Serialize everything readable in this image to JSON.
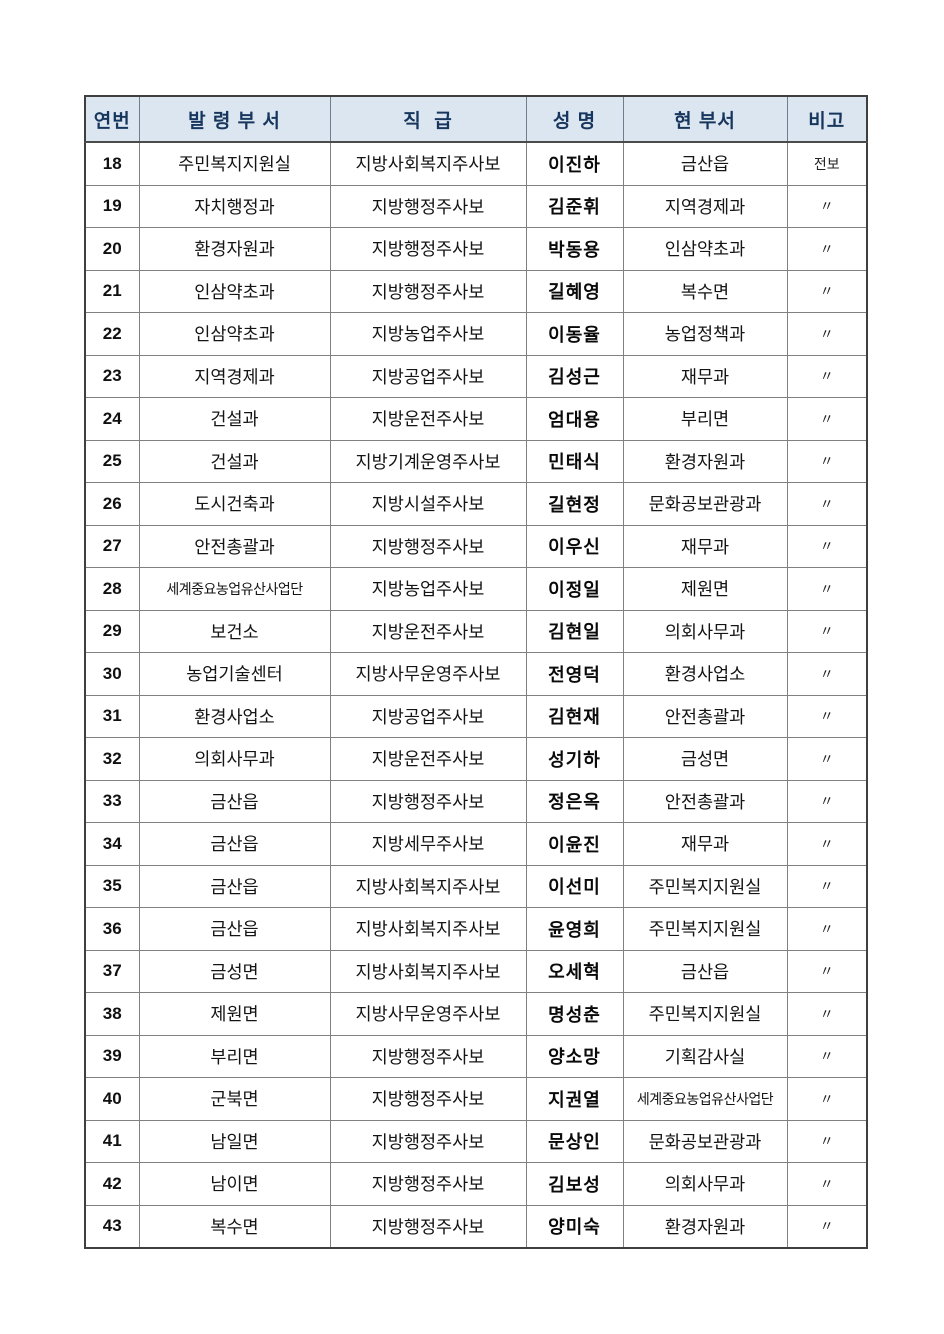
{
  "page": {
    "background": "#ffffff"
  },
  "document": {
    "kind": "personnel-transfer-table",
    "colors": {
      "header_bg": "#dce6f1",
      "header_text": "#17365d",
      "grid_line": "#808080",
      "outer_border": "#3f3f3f",
      "body_text": "#141414"
    },
    "columns": [
      {
        "key": "no",
        "label": "연번"
      },
      {
        "key": "from_dept",
        "label": "발 령 부 서"
      },
      {
        "key": "rank",
        "label": "직  급"
      },
      {
        "key": "name",
        "label": "성 명"
      },
      {
        "key": "current_dept",
        "label": "현 부서"
      },
      {
        "key": "note",
        "label": "비고"
      }
    ],
    "rows": [
      {
        "no": "18",
        "from_dept": "주민복지지원실",
        "rank": "지방사회복지주사보",
        "name": "이진하",
        "current_dept": "금산읍",
        "note": "전보"
      },
      {
        "no": "19",
        "from_dept": "자치행정과",
        "rank": "지방행정주사보",
        "name": "김준휘",
        "current_dept": "지역경제과",
        "note": "〃"
      },
      {
        "no": "20",
        "from_dept": "환경자원과",
        "rank": "지방행정주사보",
        "name": "박동용",
        "current_dept": "인삼약초과",
        "note": "〃"
      },
      {
        "no": "21",
        "from_dept": "인삼약초과",
        "rank": "지방행정주사보",
        "name": "길혜영",
        "current_dept": "복수면",
        "note": "〃"
      },
      {
        "no": "22",
        "from_dept": "인삼약초과",
        "rank": "지방농업주사보",
        "name": "이동율",
        "current_dept": "농업정책과",
        "note": "〃"
      },
      {
        "no": "23",
        "from_dept": "지역경제과",
        "rank": "지방공업주사보",
        "name": "김성근",
        "current_dept": "재무과",
        "note": "〃"
      },
      {
        "no": "24",
        "from_dept": "건설과",
        "rank": "지방운전주사보",
        "name": "엄대용",
        "current_dept": "부리면",
        "note": "〃"
      },
      {
        "no": "25",
        "from_dept": "건설과",
        "rank": "지방기계운영주사보",
        "name": "민태식",
        "current_dept": "환경자원과",
        "note": "〃"
      },
      {
        "no": "26",
        "from_dept": "도시건축과",
        "rank": "지방시설주사보",
        "name": "길현정",
        "current_dept": "문화공보관광과",
        "note": "〃"
      },
      {
        "no": "27",
        "from_dept": "안전총괄과",
        "rank": "지방행정주사보",
        "name": "이우신",
        "current_dept": "재무과",
        "note": "〃"
      },
      {
        "no": "28",
        "from_dept": "세계중요농업유산사업단",
        "rank": "지방농업주사보",
        "name": "이정일",
        "current_dept": "제원면",
        "note": "〃"
      },
      {
        "no": "29",
        "from_dept": "보건소",
        "rank": "지방운전주사보",
        "name": "김현일",
        "current_dept": "의회사무과",
        "note": "〃"
      },
      {
        "no": "30",
        "from_dept": "농업기술센터",
        "rank": "지방사무운영주사보",
        "name": "전영덕",
        "current_dept": "환경사업소",
        "note": "〃"
      },
      {
        "no": "31",
        "from_dept": "환경사업소",
        "rank": "지방공업주사보",
        "name": "김현재",
        "current_dept": "안전총괄과",
        "note": "〃"
      },
      {
        "no": "32",
        "from_dept": "의회사무과",
        "rank": "지방운전주사보",
        "name": "성기하",
        "current_dept": "금성면",
        "note": "〃"
      },
      {
        "no": "33",
        "from_dept": "금산읍",
        "rank": "지방행정주사보",
        "name": "정은옥",
        "current_dept": "안전총괄과",
        "note": "〃"
      },
      {
        "no": "34",
        "from_dept": "금산읍",
        "rank": "지방세무주사보",
        "name": "이윤진",
        "current_dept": "재무과",
        "note": "〃"
      },
      {
        "no": "35",
        "from_dept": "금산읍",
        "rank": "지방사회복지주사보",
        "name": "이선미",
        "current_dept": "주민복지지원실",
        "note": "〃"
      },
      {
        "no": "36",
        "from_dept": "금산읍",
        "rank": "지방사회복지주사보",
        "name": "윤영희",
        "current_dept": "주민복지지원실",
        "note": "〃"
      },
      {
        "no": "37",
        "from_dept": "금성면",
        "rank": "지방사회복지주사보",
        "name": "오세혁",
        "current_dept": "금산읍",
        "note": "〃"
      },
      {
        "no": "38",
        "from_dept": "제원면",
        "rank": "지방사무운영주사보",
        "name": "명성춘",
        "current_dept": "주민복지지원실",
        "note": "〃"
      },
      {
        "no": "39",
        "from_dept": "부리면",
        "rank": "지방행정주사보",
        "name": "양소망",
        "current_dept": "기획감사실",
        "note": "〃"
      },
      {
        "no": "40",
        "from_dept": "군북면",
        "rank": "지방행정주사보",
        "name": "지권열",
        "current_dept": "세계중요농업유산사업단",
        "note": "〃"
      },
      {
        "no": "41",
        "from_dept": "남일면",
        "rank": "지방행정주사보",
        "name": "문상인",
        "current_dept": "문화공보관광과",
        "note": "〃"
      },
      {
        "no": "42",
        "from_dept": "남이면",
        "rank": "지방행정주사보",
        "name": "김보성",
        "current_dept": "의회사무과",
        "note": "〃"
      },
      {
        "no": "43",
        "from_dept": "복수면",
        "rank": "지방행정주사보",
        "name": "양미숙",
        "current_dept": "환경자원과",
        "note": "〃"
      }
    ]
  }
}
